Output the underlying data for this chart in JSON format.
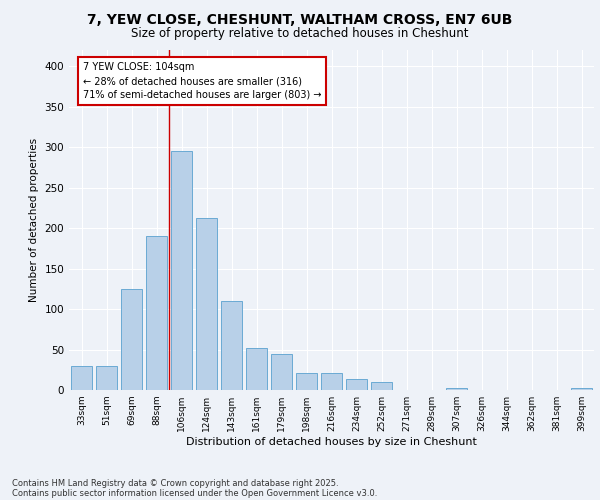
{
  "title_line1": "7, YEW CLOSE, CHESHUNT, WALTHAM CROSS, EN7 6UB",
  "title_line2": "Size of property relative to detached houses in Cheshunt",
  "xlabel": "Distribution of detached houses by size in Cheshunt",
  "ylabel": "Number of detached properties",
  "categories": [
    "33sqm",
    "51sqm",
    "69sqm",
    "88sqm",
    "106sqm",
    "124sqm",
    "143sqm",
    "161sqm",
    "179sqm",
    "198sqm",
    "216sqm",
    "234sqm",
    "252sqm",
    "271sqm",
    "289sqm",
    "307sqm",
    "326sqm",
    "344sqm",
    "362sqm",
    "381sqm",
    "399sqm"
  ],
  "values": [
    30,
    30,
    125,
    190,
    295,
    213,
    110,
    52,
    44,
    21,
    21,
    14,
    10,
    0,
    0,
    2,
    0,
    0,
    0,
    0,
    2
  ],
  "bar_color": "#b8d0e8",
  "bar_edge_color": "#6aaad4",
  "vline_color": "#cc0000",
  "annotation_text": "7 YEW CLOSE: 104sqm\n← 28% of detached houses are smaller (316)\n71% of semi-detached houses are larger (803) →",
  "annotation_box_color": "#ffffff",
  "annotation_box_edge": "#cc0000",
  "footer_line1": "Contains HM Land Registry data © Crown copyright and database right 2025.",
  "footer_line2": "Contains public sector information licensed under the Open Government Licence v3.0.",
  "background_color": "#eef2f8",
  "plot_background": "#eef2f8",
  "grid_color": "#ffffff",
  "ylim": [
    0,
    420
  ],
  "yticks": [
    0,
    50,
    100,
    150,
    200,
    250,
    300,
    350,
    400
  ]
}
